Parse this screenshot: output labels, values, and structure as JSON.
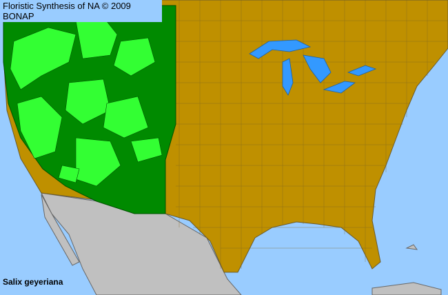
{
  "header": {
    "title": "Floristic Synthesis of NA © 2009 BONAP"
  },
  "map": {
    "species": "Salix geyeriana",
    "colors": {
      "ocean": "#99ccff",
      "lakes": "#3399ff",
      "not_present": "#bf9000",
      "state_present": "#008a00",
      "county_present": "#33ff33",
      "outside_area": "#c0c0c0",
      "county_lines": "#6b5a2a"
    }
  }
}
